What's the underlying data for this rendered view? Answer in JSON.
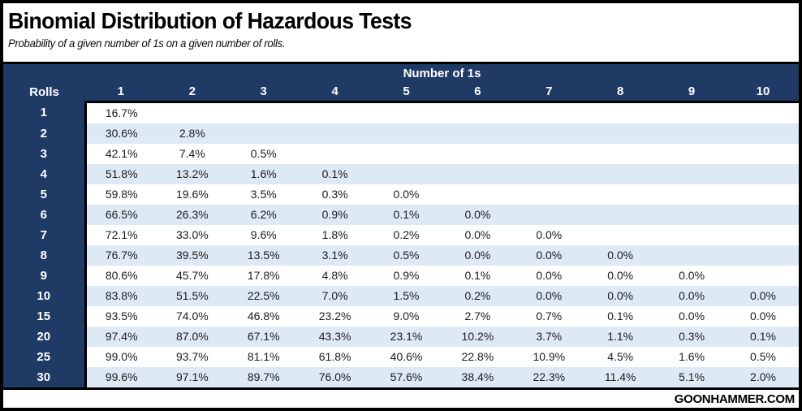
{
  "header": {
    "title": "Binomial Distribution of Hazardous Tests",
    "subtitle": "Probability of a given number of 1s on a given number of rolls."
  },
  "footer": {
    "brand": "GOONHAMMER.COM"
  },
  "colors": {
    "header_navy": "#203a66",
    "stripe_blue": "#dde9f4",
    "border_black": "#000000",
    "header_text": "#ffffff",
    "data_text": "#1c1c1c"
  },
  "chart_data": {
    "type": "table",
    "title": "Binomial Distribution of Hazardous Tests",
    "subtitle": "Probability of a given number of 1s on a given number of rolls.",
    "column_group_label": "Number of 1s",
    "row_header_label": "Rolls",
    "columns": [
      "1",
      "2",
      "3",
      "4",
      "5",
      "6",
      "7",
      "8",
      "9",
      "10"
    ],
    "rows": [
      "1",
      "2",
      "3",
      "4",
      "5",
      "6",
      "7",
      "8",
      "9",
      "10",
      "15",
      "20",
      "25",
      "30"
    ],
    "values_pct": [
      [
        16.7,
        null,
        null,
        null,
        null,
        null,
        null,
        null,
        null,
        null
      ],
      [
        30.6,
        2.8,
        null,
        null,
        null,
        null,
        null,
        null,
        null,
        null
      ],
      [
        42.1,
        7.4,
        0.5,
        null,
        null,
        null,
        null,
        null,
        null,
        null
      ],
      [
        51.8,
        13.2,
        1.6,
        0.1,
        null,
        null,
        null,
        null,
        null,
        null
      ],
      [
        59.8,
        19.6,
        3.5,
        0.3,
        0.0,
        null,
        null,
        null,
        null,
        null
      ],
      [
        66.5,
        26.3,
        6.2,
        0.9,
        0.1,
        0.0,
        null,
        null,
        null,
        null
      ],
      [
        72.1,
        33.0,
        9.6,
        1.8,
        0.2,
        0.0,
        0.0,
        null,
        null,
        null
      ],
      [
        76.7,
        39.5,
        13.5,
        3.1,
        0.5,
        0.0,
        0.0,
        0.0,
        null,
        null
      ],
      [
        80.6,
        45.7,
        17.8,
        4.8,
        0.9,
        0.1,
        0.0,
        0.0,
        0.0,
        null
      ],
      [
        83.8,
        51.5,
        22.5,
        7.0,
        1.5,
        0.2,
        0.0,
        0.0,
        0.0,
        0.0
      ],
      [
        93.5,
        74.0,
        46.8,
        23.2,
        9.0,
        2.7,
        0.7,
        0.1,
        0.0,
        0.0
      ],
      [
        97.4,
        87.0,
        67.1,
        43.3,
        23.1,
        10.2,
        3.7,
        1.1,
        0.3,
        0.1
      ],
      [
        99.0,
        93.7,
        81.1,
        61.8,
        40.6,
        22.8,
        10.9,
        4.5,
        1.6,
        0.5
      ],
      [
        99.6,
        97.1,
        89.7,
        76.0,
        57.6,
        38.4,
        22.3,
        11.4,
        5.1,
        2.0
      ]
    ],
    "value_format": "percent_1dp",
    "layout": {
      "striped": true,
      "stripe_colors": [
        "#ffffff",
        "#dde9f4"
      ],
      "row_header_column_on_left": true,
      "empty_cells_blank": true
    }
  }
}
